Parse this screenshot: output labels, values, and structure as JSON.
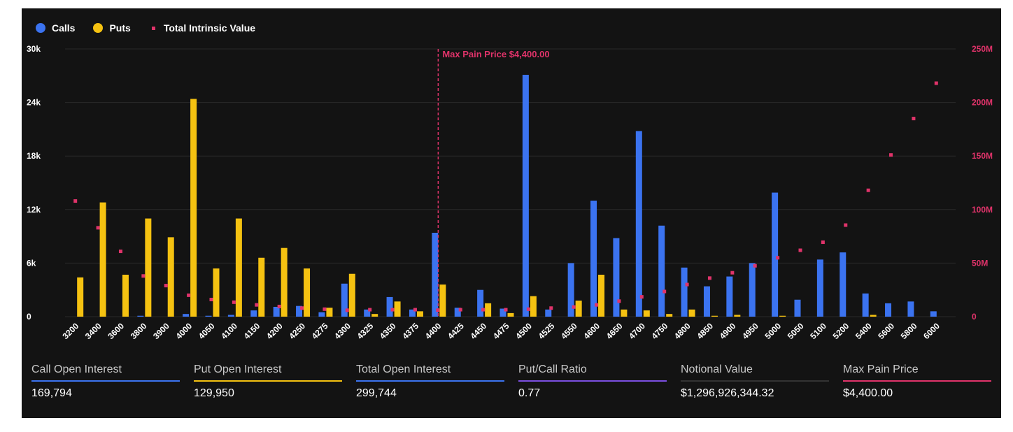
{
  "colors": {
    "calls": "#3b73f0",
    "puts": "#f5c211",
    "intrinsic": "#e0336a",
    "axis_text_left": "#ffffff",
    "axis_text_right": "#e0336a",
    "background": "#131313",
    "grid": "#2a2a2a"
  },
  "legend": {
    "calls_label": "Calls",
    "puts_label": "Puts",
    "intrinsic_label": "Total Intrinsic Value"
  },
  "chart_data": {
    "type": "bar",
    "categories": [
      "3200",
      "3400",
      "3600",
      "3800",
      "3900",
      "4000",
      "4050",
      "4100",
      "4150",
      "4200",
      "4250",
      "4275",
      "4300",
      "4325",
      "4350",
      "4375",
      "4400",
      "4425",
      "4450",
      "4475",
      "4500",
      "4525",
      "4550",
      "4600",
      "4650",
      "4700",
      "4750",
      "4800",
      "4850",
      "4900",
      "4950",
      "5000",
      "5050",
      "5100",
      "5200",
      "5400",
      "5600",
      "5800",
      "6000"
    ],
    "series": [
      {
        "name": "Calls",
        "axis": "left",
        "kind": "bar",
        "values": [
          0,
          0,
          0,
          100,
          0,
          300,
          100,
          200,
          700,
          1100,
          1200,
          500,
          3700,
          800,
          2200,
          800,
          9400,
          1000,
          3000,
          900,
          27100,
          800,
          6000,
          13000,
          8800,
          20800,
          10200,
          5500,
          3400,
          4500,
          6000,
          13900,
          1900,
          6400,
          7200,
          2600,
          1500,
          1700,
          600
        ]
      },
      {
        "name": "Puts",
        "axis": "left",
        "kind": "bar",
        "values": [
          4400,
          12800,
          4700,
          11000,
          8900,
          24400,
          5400,
          11000,
          6600,
          7700,
          5400,
          1000,
          4800,
          300,
          1700,
          600,
          3600,
          0,
          1500,
          400,
          2300,
          0,
          1800,
          4700,
          800,
          700,
          300,
          800,
          100,
          200,
          0,
          100,
          0,
          0,
          0,
          200,
          0,
          0,
          0
        ]
      },
      {
        "name": "Total Intrinsic Value",
        "axis": "right",
        "kind": "scatter",
        "values": [
          108000000,
          83000000,
          61000000,
          38000000,
          29000000,
          20000000,
          16000000,
          13500000,
          11000000,
          9500000,
          8000000,
          7000000,
          6000000,
          6500000,
          6500000,
          6500000,
          6000000,
          6500000,
          6500000,
          6500000,
          7000000,
          8000000,
          9000000,
          11000000,
          14500000,
          18500000,
          23500000,
          30000000,
          36000000,
          41000000,
          47500000,
          55000000,
          62000000,
          69500000,
          85500000,
          118000000,
          151000000,
          185000000,
          218000000
        ]
      }
    ],
    "left_axis": {
      "min": 0,
      "max": 30000,
      "ticks": [
        "0",
        "6k",
        "12k",
        "18k",
        "24k",
        "30k"
      ]
    },
    "right_axis": {
      "min": 0,
      "max": 250000000,
      "ticks": [
        "0",
        "50M",
        "100M",
        "150M",
        "200M",
        "250M"
      ]
    },
    "grid": true,
    "legend_position": "top-left",
    "annotation": {
      "category": "4400",
      "label": "Max Pain Price $4,400.00"
    }
  },
  "stats": [
    {
      "label": "Call Open Interest",
      "value": "169,794",
      "color": "#3b73f0"
    },
    {
      "label": "Put Open Interest",
      "value": "129,950",
      "color": "#f5c211"
    },
    {
      "label": "Total Open Interest",
      "value": "299,744",
      "color": "#3b73f0"
    },
    {
      "label": "Put/Call Ratio",
      "value": "0.77",
      "color": "#7b4fe0"
    },
    {
      "label": "Notional Value",
      "value": "$1,296,926,344.32",
      "color": "#333333"
    },
    {
      "label": "Max Pain Price",
      "value": "$4,400.00",
      "color": "#e0336a"
    }
  ]
}
